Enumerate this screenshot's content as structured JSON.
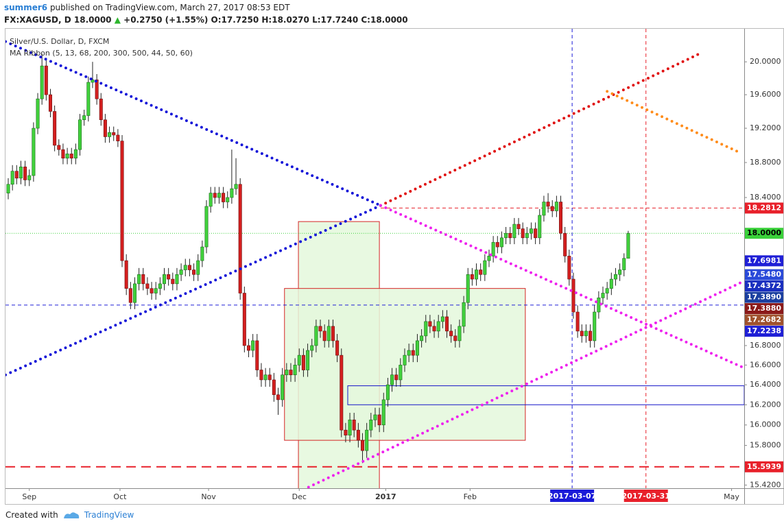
{
  "header": {
    "publisher": "summer6",
    "published": "published on TradingView.com, March 27, 2017 08:53 EDT",
    "symbol": "FX:XAGUSD, D",
    "last": "18.0000",
    "change": "+0.2750 (+1.55%)",
    "open": "O:17.7250",
    "high": "H:18.0270",
    "low": "L:17.7240",
    "close": "C:18.0000"
  },
  "chart_data": {
    "type": "candlestick",
    "title": "Silver/U.S. Dollar, D, FXCM",
    "indicator": "MA Ribbon (5, 13, 68, 200, 300, 500, 44, 50, 60)",
    "log_scale": true,
    "up_color": "#41d13c",
    "down_color": "#d41f1f",
    "xlim": [
      -0.65,
      174.5
    ],
    "xticks": [
      {
        "value": 5,
        "label": "Sep"
      },
      {
        "value": 26.5,
        "label": "Oct"
      },
      {
        "value": 47.5,
        "label": "Nov"
      },
      {
        "value": 69,
        "label": "Dec"
      },
      {
        "value": 89.5,
        "label": "2017"
      },
      {
        "value": 109.5,
        "label": "Feb"
      },
      {
        "value": 171.5,
        "label": "May"
      }
    ],
    "ylim": [
      15.39,
      20.41
    ],
    "yticks": [
      {
        "value": 20,
        "label": "20.0000"
      },
      {
        "value": 19.6,
        "label": "19.6000"
      },
      {
        "value": 19.2,
        "label": "19.2000"
      },
      {
        "value": 18.8,
        "label": "18.8000"
      },
      {
        "value": 18.4,
        "label": "18.4000"
      },
      {
        "value": 16.8,
        "label": "16.8000"
      },
      {
        "value": 16.6,
        "label": "16.6000"
      },
      {
        "value": 16.4,
        "label": "16.4000"
      },
      {
        "value": 16.2,
        "label": "16.2000"
      },
      {
        "value": 16,
        "label": "16.0000"
      },
      {
        "value": 15.8,
        "label": "15.8000"
      },
      {
        "value": 15.42,
        "label": "15.4200"
      }
    ],
    "candles": [
      [
        18.45,
        18.62,
        18.38,
        18.55
      ],
      [
        18.55,
        18.77,
        18.48,
        18.7
      ],
      [
        18.7,
        18.77,
        18.55,
        18.62
      ],
      [
        18.62,
        18.82,
        18.55,
        18.75
      ],
      [
        18.75,
        18.82,
        18.53,
        18.6
      ],
      [
        18.6,
        18.72,
        18.53,
        18.65
      ],
      [
        18.65,
        19.27,
        18.58,
        19.2
      ],
      [
        19.2,
        19.62,
        19.13,
        19.55
      ],
      [
        19.55,
        20.1,
        19.48,
        19.95
      ],
      [
        19.95,
        20.02,
        19.53,
        19.6
      ],
      [
        19.6,
        19.67,
        19.33,
        19.4
      ],
      [
        19.4,
        19.47,
        18.93,
        19
      ],
      [
        19,
        19.07,
        18.88,
        18.95
      ],
      [
        18.95,
        19.02,
        18.78,
        18.85
      ],
      [
        18.85,
        18.97,
        18.78,
        18.9
      ],
      [
        18.9,
        18.97,
        18.78,
        18.85
      ],
      [
        18.85,
        19.02,
        18.78,
        18.95
      ],
      [
        18.95,
        19.37,
        18.88,
        19.3
      ],
      [
        19.3,
        19.42,
        19.23,
        19.35
      ],
      [
        19.35,
        19.82,
        19.28,
        19.75
      ],
      [
        19.75,
        20,
        19.68,
        19.78
      ],
      [
        19.78,
        19.85,
        19.48,
        19.55
      ],
      [
        19.55,
        19.62,
        19.23,
        19.3
      ],
      [
        19.3,
        19.37,
        19.03,
        19.1
      ],
      [
        19.1,
        19.22,
        19.03,
        19.15
      ],
      [
        19.15,
        19.22,
        19.05,
        19.12
      ],
      [
        19.12,
        19.19,
        18.98,
        19.05
      ],
      [
        19.05,
        19.12,
        17.63,
        17.7
      ],
      [
        17.7,
        17.77,
        17.33,
        17.4
      ],
      [
        17.4,
        17.47,
        17.18,
        17.25
      ],
      [
        17.25,
        17.52,
        17.18,
        17.45
      ],
      [
        17.45,
        17.62,
        17.38,
        17.55
      ],
      [
        17.55,
        17.62,
        17.38,
        17.45
      ],
      [
        17.45,
        17.52,
        17.33,
        17.4
      ],
      [
        17.4,
        17.47,
        17.28,
        17.35
      ],
      [
        17.35,
        17.47,
        17.28,
        17.4
      ],
      [
        17.4,
        17.52,
        17.33,
        17.45
      ],
      [
        17.45,
        17.62,
        17.38,
        17.55
      ],
      [
        17.55,
        17.62,
        17.43,
        17.5
      ],
      [
        17.5,
        17.57,
        17.38,
        17.45
      ],
      [
        17.45,
        17.62,
        17.38,
        17.55
      ],
      [
        17.55,
        17.67,
        17.48,
        17.6
      ],
      [
        17.6,
        17.72,
        17.53,
        17.65
      ],
      [
        17.65,
        17.72,
        17.53,
        17.6
      ],
      [
        17.6,
        17.67,
        17.48,
        17.55
      ],
      [
        17.55,
        17.77,
        17.48,
        17.7
      ],
      [
        17.7,
        17.92,
        17.63,
        17.85
      ],
      [
        17.85,
        18.37,
        17.78,
        18.3
      ],
      [
        18.3,
        18.52,
        18.23,
        18.45
      ],
      [
        18.45,
        18.52,
        18.33,
        18.4
      ],
      [
        18.4,
        18.52,
        18.33,
        18.45
      ],
      [
        18.45,
        18.52,
        18.28,
        18.35
      ],
      [
        18.35,
        18.47,
        18.28,
        18.4
      ],
      [
        18.4,
        18.95,
        18.33,
        18.5
      ],
      [
        18.5,
        18.85,
        18.43,
        18.55
      ],
      [
        18.55,
        18.62,
        17.28,
        17.35
      ],
      [
        17.35,
        17.42,
        16.73,
        16.8
      ],
      [
        16.8,
        16.87,
        16.68,
        16.75
      ],
      [
        16.75,
        16.92,
        16.68,
        16.85
      ],
      [
        16.85,
        16.92,
        16.48,
        16.55
      ],
      [
        16.55,
        16.62,
        16.38,
        16.45
      ],
      [
        16.45,
        16.57,
        16.38,
        16.5
      ],
      [
        16.5,
        16.57,
        16.38,
        16.45
      ],
      [
        16.45,
        16.52,
        16.23,
        16.3
      ],
      [
        16.3,
        16.37,
        16.1,
        16.25
      ],
      [
        16.25,
        16.57,
        16.18,
        16.5
      ],
      [
        16.5,
        16.62,
        16.43,
        16.55
      ],
      [
        16.55,
        16.62,
        16.43,
        16.5
      ],
      [
        16.5,
        16.67,
        16.43,
        16.6
      ],
      [
        16.6,
        16.77,
        16.53,
        16.7
      ],
      [
        16.7,
        16.77,
        16.48,
        16.55
      ],
      [
        16.55,
        16.82,
        16.48,
        16.75
      ],
      [
        16.75,
        16.87,
        16.68,
        16.8
      ],
      [
        16.8,
        17.07,
        16.73,
        17
      ],
      [
        17,
        17.07,
        16.88,
        16.95
      ],
      [
        16.95,
        17.02,
        16.78,
        16.85
      ],
      [
        16.85,
        17.07,
        16.78,
        17
      ],
      [
        17,
        17.07,
        16.78,
        16.85
      ],
      [
        16.85,
        16.92,
        16.63,
        16.7
      ],
      [
        16.7,
        16.77,
        15.88,
        15.95
      ],
      [
        15.95,
        16.02,
        15.83,
        15.9
      ],
      [
        15.9,
        16.12,
        15.83,
        16.05
      ],
      [
        16.05,
        16.12,
        15.88,
        15.95
      ],
      [
        15.95,
        16.02,
        15.78,
        15.85
      ],
      [
        15.85,
        15.92,
        15.63,
        15.75
      ],
      [
        15.75,
        16.02,
        15.68,
        15.95
      ],
      [
        15.95,
        16.12,
        15.88,
        16.05
      ],
      [
        16.05,
        16.17,
        15.98,
        16.1
      ],
      [
        16.1,
        16.17,
        15.93,
        16
      ],
      [
        16,
        16.32,
        15.93,
        16.25
      ],
      [
        16.25,
        16.47,
        16.18,
        16.4
      ],
      [
        16.4,
        16.57,
        16.33,
        16.5
      ],
      [
        16.5,
        16.57,
        16.38,
        16.45
      ],
      [
        16.45,
        16.67,
        16.38,
        16.6
      ],
      [
        16.6,
        16.77,
        16.53,
        16.7
      ],
      [
        16.7,
        16.82,
        16.63,
        16.75
      ],
      [
        16.75,
        16.82,
        16.63,
        16.7
      ],
      [
        16.7,
        16.92,
        16.63,
        16.85
      ],
      [
        16.85,
        16.97,
        16.78,
        16.9
      ],
      [
        16.9,
        17.12,
        16.83,
        17.05
      ],
      [
        17.05,
        17.12,
        16.93,
        17
      ],
      [
        17,
        17.07,
        16.88,
        16.95
      ],
      [
        16.95,
        17.12,
        16.88,
        17.05
      ],
      [
        17.05,
        17.17,
        16.98,
        17.1
      ],
      [
        17.1,
        17.17,
        16.88,
        16.95
      ],
      [
        16.95,
        17.02,
        16.83,
        16.9
      ],
      [
        16.9,
        16.97,
        16.78,
        16.85
      ],
      [
        16.85,
        17.07,
        16.78,
        17
      ],
      [
        17,
        17.32,
        16.93,
        17.25
      ],
      [
        17.25,
        17.62,
        17.18,
        17.55
      ],
      [
        17.55,
        17.62,
        17.43,
        17.5
      ],
      [
        17.5,
        17.67,
        17.43,
        17.6
      ],
      [
        17.6,
        17.67,
        17.48,
        17.55
      ],
      [
        17.55,
        17.77,
        17.48,
        17.7
      ],
      [
        17.7,
        17.82,
        17.63,
        17.75
      ],
      [
        17.75,
        17.97,
        17.68,
        17.9
      ],
      [
        17.9,
        17.97,
        17.78,
        17.85
      ],
      [
        17.85,
        18.02,
        17.78,
        17.95
      ],
      [
        17.95,
        18.07,
        17.88,
        18
      ],
      [
        18,
        18.07,
        17.88,
        17.95
      ],
      [
        17.95,
        18.17,
        17.88,
        18.1
      ],
      [
        18.1,
        18.17,
        17.98,
        18.05
      ],
      [
        18.05,
        18.12,
        17.88,
        17.95
      ],
      [
        17.95,
        18.07,
        17.88,
        18
      ],
      [
        18,
        18.12,
        17.93,
        18.05
      ],
      [
        18.05,
        18.12,
        17.88,
        17.95
      ],
      [
        17.95,
        18.27,
        17.88,
        18.2
      ],
      [
        18.2,
        18.42,
        18.13,
        18.35
      ],
      [
        18.35,
        18.45,
        18.23,
        18.3
      ],
      [
        18.3,
        18.37,
        18.18,
        18.25
      ],
      [
        18.25,
        18.42,
        18.18,
        18.35
      ],
      [
        18.35,
        18.42,
        17.93,
        18
      ],
      [
        18,
        18.07,
        17.68,
        17.75
      ],
      [
        17.75,
        17.82,
        17.43,
        17.5
      ],
      [
        17.5,
        17.57,
        17.08,
        17.15
      ],
      [
        17.15,
        17.22,
        16.88,
        16.95
      ],
      [
        16.95,
        17.02,
        16.83,
        16.9
      ],
      [
        16.9,
        17.02,
        16.83,
        16.95
      ],
      [
        16.95,
        17.02,
        16.78,
        16.85
      ],
      [
        16.85,
        17.22,
        16.78,
        17.15
      ],
      [
        17.15,
        17.37,
        17.08,
        17.3
      ],
      [
        17.3,
        17.42,
        17.23,
        17.35
      ],
      [
        17.35,
        17.47,
        17.28,
        17.4
      ],
      [
        17.4,
        17.57,
        17.33,
        17.5
      ],
      [
        17.5,
        17.62,
        17.43,
        17.55
      ],
      [
        17.55,
        17.67,
        17.48,
        17.6
      ],
      [
        17.6,
        17.78,
        17.53,
        17.725
      ],
      [
        17.725,
        18.027,
        17.724,
        18
      ]
    ],
    "levels": [
      {
        "value": 18.2812,
        "label": "18.2812",
        "color": "#e8202a",
        "text_color": "#ffffff",
        "line": "dash",
        "start": 88.3
      },
      {
        "value": 18,
        "label": "18.0000",
        "color": "#3ad13a",
        "text_color": "#000000",
        "line": "dot",
        "start": -0.65
      },
      {
        "value": 17.6981,
        "label": "17.6981",
        "color": "#1f1fd6",
        "text_color": "#ffffff"
      },
      {
        "value": 17.548,
        "label": "17.5480",
        "color": "#2a4ad9",
        "text_color": "#ffffff"
      },
      {
        "value": 17.4372,
        "label": "17.4372",
        "color": "#1a2fbf",
        "text_color": "#ffffff"
      },
      {
        "value": 17.389,
        "label": "17.3890",
        "color": "#1b3fa0",
        "text_color": "#ffffff"
      },
      {
        "value": 17.388,
        "label": "17.3880",
        "color": "#8b1a1a",
        "text_color": "#ffffff"
      },
      {
        "value": 17.2682,
        "label": "17.2682",
        "color": "#a0522d",
        "text_color": "#ffffff"
      },
      {
        "value": 17.2238,
        "label": "17.2238",
        "color": "#1f1fd6",
        "text_color": "#ffffff",
        "line": "dash",
        "start": -0.65
      },
      {
        "value": 15.5939,
        "label": "15.5939",
        "color": "#e8202a",
        "text_color": "#ffffff",
        "line": "longdash",
        "start": -0.65
      }
    ],
    "trendlines": [
      {
        "from": [
          -0.65,
          20.25
        ],
        "to": [
          88.3,
          18.31
        ],
        "color": "#1414d8"
      },
      {
        "from": [
          -0.65,
          16.5
        ],
        "to": [
          88.3,
          18.31
        ],
        "color": "#1414d8"
      },
      {
        "from": [
          88.3,
          18.31
        ],
        "to": [
          163.9,
          20.1
        ],
        "color": "#e01010"
      },
      {
        "from": [
          88.3,
          18.31
        ],
        "to": [
          174.5,
          16.57
        ],
        "color": "#ee22ee"
      },
      {
        "from": [
          71.2,
          15.4
        ],
        "to": [
          174.5,
          17.48
        ],
        "color": "#ee22ee"
      },
      {
        "from": [
          142,
          19.64
        ],
        "to": [
          172.8,
          18.93
        ],
        "color": "#ff8c1a"
      }
    ],
    "rects": [
      {
        "x": [
          68.8,
          88
        ],
        "y": [
          15.35,
          18.13
        ],
        "stroke": "#d42424",
        "fill": "#e4f8dc"
      },
      {
        "x": [
          65.5,
          122.6
        ],
        "y": [
          15.85,
          17.4
        ],
        "stroke": "#d42424",
        "fill": "#e4f8dc"
      },
      {
        "x": [
          80.5,
          174.5
        ],
        "y": [
          16.2,
          16.39
        ],
        "stroke": "#1414c8",
        "fill": "none"
      }
    ],
    "vlines": [
      {
        "value": 133.7,
        "label": "2017-03-07",
        "color": "#1a1ad8"
      },
      {
        "value": 151.2,
        "label": "2017-03-31",
        "color": "#e8202a"
      }
    ]
  },
  "footer": {
    "created": "Created with",
    "brand": "TradingView"
  }
}
